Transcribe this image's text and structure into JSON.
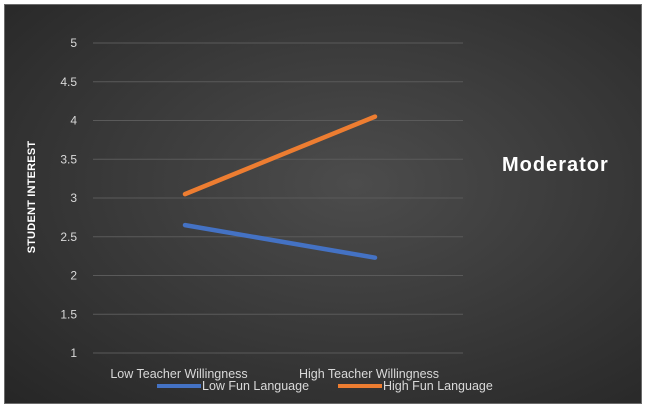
{
  "chart_data": {
    "type": "line",
    "categories": [
      "Low Teacher Willingness",
      "High Teacher Willingness"
    ],
    "series": [
      {
        "name": "Low Fun Language",
        "values": [
          2.65,
          2.23
        ],
        "color": "#4472c4"
      },
      {
        "name": "High Fun Language",
        "values": [
          3.05,
          4.05
        ],
        "color": "#ed7d31"
      }
    ],
    "ylabel": "STUDENT INTEREST",
    "xlabel": "",
    "ylim": [
      1,
      5
    ],
    "yticks": [
      1,
      1.5,
      2,
      2.5,
      3,
      3.5,
      4,
      4.5,
      5
    ],
    "grid": true,
    "legend_position": "bottom",
    "annotation": "Moderator"
  }
}
